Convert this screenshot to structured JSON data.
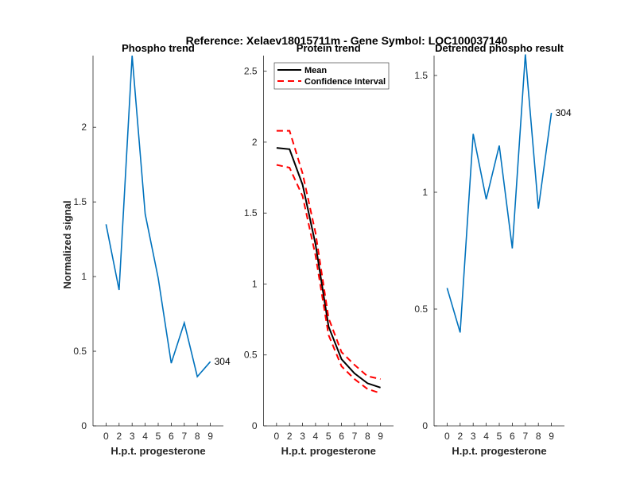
{
  "figure_title": "Reference:  Xelaev18015711m - Gene Symbol:  LOC100037140",
  "chart_data": [
    {
      "type": "line",
      "title": "Phospho trend",
      "xlabel": "H.p.t. progesterone",
      "ylabel": "Normalized signal",
      "categories": [
        "0",
        "2",
        "3",
        "4",
        "5",
        "6",
        "7",
        "8",
        "9"
      ],
      "ylim": [
        0,
        2.48
      ],
      "yticks": [
        0,
        0.5,
        1,
        1.5,
        2
      ],
      "ytick_labels": [
        "0",
        "0.5",
        "1",
        "1.5",
        "2"
      ],
      "series": [
        {
          "name": "phospho",
          "color": "#0072BD",
          "values": [
            1.35,
            0.91,
            2.48,
            1.42,
            0.99,
            0.42,
            0.69,
            0.33,
            0.43
          ]
        }
      ],
      "end_label": "304"
    },
    {
      "type": "line",
      "title": "Protein trend",
      "xlabel": "H.p.t. progesterone",
      "ylabel": "",
      "categories": [
        "0",
        "2",
        "3",
        "4",
        "5",
        "6",
        "7",
        "8",
        "9"
      ],
      "ylim": [
        0,
        2.61
      ],
      "yticks": [
        0,
        0.5,
        1,
        1.5,
        2,
        2.5
      ],
      "ytick_labels": [
        "0",
        "0.5",
        "1",
        "1.5",
        "2",
        "2.5"
      ],
      "legend": {
        "position": "top-left",
        "entries": [
          "Mean",
          "Confidence Interval"
        ]
      },
      "series": [
        {
          "name": "Mean",
          "color": "#000000",
          "dashed": false,
          "values": [
            1.96,
            1.95,
            1.7,
            1.28,
            0.7,
            0.47,
            0.37,
            0.3,
            0.27
          ]
        },
        {
          "name": "Confidence Interval upper",
          "color": "#FF0000",
          "dashed": true,
          "values": [
            2.08,
            2.08,
            1.78,
            1.36,
            0.76,
            0.52,
            0.43,
            0.35,
            0.33
          ]
        },
        {
          "name": "Confidence Interval lower",
          "color": "#FF0000",
          "dashed": true,
          "values": [
            1.84,
            1.82,
            1.62,
            1.2,
            0.64,
            0.42,
            0.33,
            0.26,
            0.23
          ]
        }
      ]
    },
    {
      "type": "line",
      "title": "Detrended phospho result",
      "xlabel": "H.p.t. progesterone",
      "ylabel": "",
      "categories": [
        "0",
        "2",
        "3",
        "4",
        "5",
        "6",
        "7",
        "8",
        "9"
      ],
      "ylim": [
        0,
        1.585
      ],
      "yticks": [
        0,
        0.5,
        1,
        1.5
      ],
      "ytick_labels": [
        "0",
        "0.5",
        "1",
        "1.5"
      ],
      "series": [
        {
          "name": "detrended",
          "color": "#0072BD",
          "values": [
            0.59,
            0.4,
            1.25,
            0.97,
            1.2,
            0.76,
            1.59,
            0.93,
            1.34
          ]
        }
      ],
      "end_label": "304"
    }
  ]
}
